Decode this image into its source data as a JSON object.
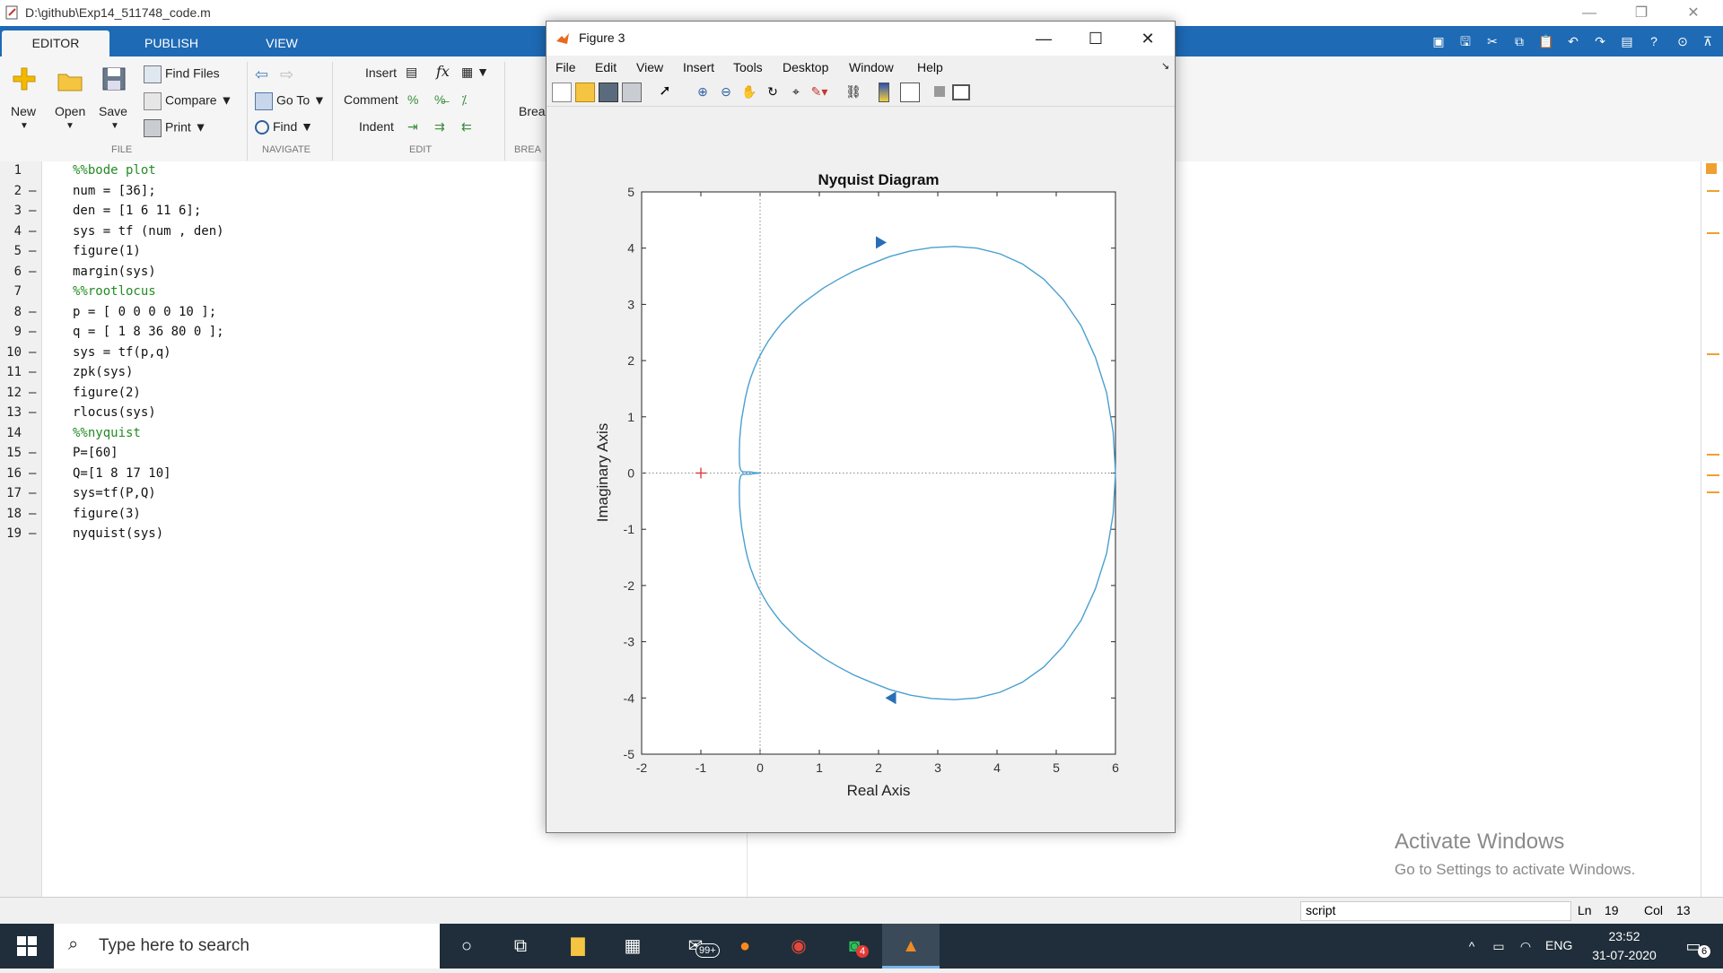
{
  "app": {
    "title": "D:\\github\\Exp14_511748_code.m",
    "window_controls": [
      "minimize",
      "restore",
      "close"
    ]
  },
  "ribbon": {
    "tabs": [
      {
        "label": "EDITOR",
        "active": true
      },
      {
        "label": "PUBLISH",
        "active": false
      },
      {
        "label": "VIEW",
        "active": false
      }
    ],
    "file": {
      "new": "New",
      "open": "Open",
      "save": "Save",
      "find_files": "Find Files",
      "compare": "Compare",
      "print": "Print",
      "group": "FILE"
    },
    "navigate": {
      "go_to": "Go To",
      "find": "Find",
      "group": "NAVIGATE"
    },
    "edit": {
      "insert": "Insert",
      "comment": "Comment",
      "indent": "Indent",
      "fx": "fx",
      "group": "EDIT"
    },
    "breakpoints": {
      "label": "Brea",
      "group": "BREA"
    }
  },
  "editor": {
    "lines": [
      {
        "n": "1",
        "dash": "",
        "text": "%%bode plot",
        "comment": true
      },
      {
        "n": "2",
        "dash": "–",
        "text": "num = [36];",
        "comment": false
      },
      {
        "n": "3",
        "dash": "–",
        "text": "den = [1 6 11 6];",
        "comment": false
      },
      {
        "n": "4",
        "dash": "–",
        "text": "sys = tf (num , den)",
        "comment": false
      },
      {
        "n": "5",
        "dash": "–",
        "text": "figure(1)",
        "comment": false
      },
      {
        "n": "6",
        "dash": "–",
        "text": "margin(sys)",
        "comment": false
      },
      {
        "n": "7",
        "dash": "",
        "text": "%%rootlocus",
        "comment": true
      },
      {
        "n": "8",
        "dash": "–",
        "text": "p = [ 0 0 0 0 10 ];",
        "comment": false
      },
      {
        "n": "9",
        "dash": "–",
        "text": "q = [ 1 8 36 80 0 ];",
        "comment": false
      },
      {
        "n": "10",
        "dash": "–",
        "text": "sys = tf(p,q)",
        "comment": false
      },
      {
        "n": "11",
        "dash": "–",
        "text": "zpk(sys)",
        "comment": false
      },
      {
        "n": "12",
        "dash": "–",
        "text": "figure(2)",
        "comment": false
      },
      {
        "n": "13",
        "dash": "–",
        "text": "rlocus(sys)",
        "comment": false
      },
      {
        "n": "14",
        "dash": "",
        "text": "%%nyquist",
        "comment": true
      },
      {
        "n": "15",
        "dash": "–",
        "text": "P=[60]",
        "comment": false
      },
      {
        "n": "16",
        "dash": "–",
        "text": "Q=[1 8 17 10]",
        "comment": false
      },
      {
        "n": "17",
        "dash": "–",
        "text": "sys=tf(P,Q)",
        "comment": false
      },
      {
        "n": "18",
        "dash": "–",
        "text": "figure(3)",
        "comment": false
      },
      {
        "n": "19",
        "dash": "–",
        "text": "nyquist(sys)",
        "comment": false
      }
    ]
  },
  "status": {
    "mode": "script",
    "ln_label": "Ln",
    "ln_value": "19",
    "col_label": "Col",
    "col_value": "13"
  },
  "watermark": {
    "line1": "Activate Windows",
    "line2": "Go to Settings to activate Windows."
  },
  "taskbar": {
    "search_placeholder": "Type here to search",
    "mail_badge": "99+",
    "whatsapp_badge": "4",
    "lang": "ENG",
    "time": "23:52",
    "date": "31-07-2020",
    "notification_count": "6"
  },
  "figure": {
    "title": "Figure 3",
    "menu": [
      "File",
      "Edit",
      "View",
      "Insert",
      "Tools",
      "Desktop",
      "Window",
      "Help"
    ],
    "toolbar_icons": [
      "new-figure-icon",
      "open-icon",
      "save-icon",
      "print-icon",
      "pointer-icon",
      "zoom-in-icon",
      "zoom-out-icon",
      "pan-icon",
      "rotate-icon",
      "data-cursor-icon",
      "brush-icon",
      "link-icon",
      "colorbar-icon",
      "legend-icon",
      "hide-plot-tools-icon",
      "show-plot-tools-icon"
    ]
  },
  "chart_data": {
    "type": "line",
    "title": "Nyquist Diagram",
    "xlabel": "Real Axis",
    "ylabel": "Imaginary Axis",
    "xlim": [
      -2,
      6
    ],
    "ylim": [
      -5,
      5
    ],
    "xticks": [
      "-2",
      "-1",
      "0",
      "1",
      "2",
      "3",
      "4",
      "5",
      "6"
    ],
    "yticks": [
      "5",
      "4",
      "3",
      "2",
      "1",
      "0",
      "-1",
      "-2",
      "-3",
      "-4",
      "-5"
    ],
    "critical_point": [
      -1,
      0
    ],
    "line_color": "#4a9fd0",
    "series": [
      {
        "x": [
          6.0,
          5.96,
          5.85,
          5.66,
          5.42,
          5.12,
          4.79,
          4.43,
          4.05,
          3.66,
          3.28,
          2.9,
          2.54,
          2.19,
          1.87,
          1.58,
          1.31,
          1.07,
          0.86,
          0.67,
          0.51,
          0.37,
          0.25,
          0.14,
          0.05,
          -0.03,
          -0.1,
          -0.16,
          -0.21,
          -0.25,
          -0.28,
          -0.31,
          -0.33,
          -0.345,
          -0.35,
          -0.35,
          -0.345,
          -0.33,
          -0.31,
          -0.28,
          -0.25,
          -0.21,
          -0.16,
          -0.1,
          -0.05,
          0
        ],
        "y": [
          0.0,
          -0.73,
          -1.43,
          -2.06,
          -2.62,
          -3.08,
          -3.45,
          -3.72,
          -3.9,
          -4.0,
          -4.03,
          -4.01,
          -3.95,
          -3.85,
          -3.72,
          -3.59,
          -3.44,
          -3.29,
          -3.13,
          -2.98,
          -2.82,
          -2.67,
          -2.51,
          -2.35,
          -2.19,
          -2.03,
          -1.86,
          -1.69,
          -1.51,
          -1.33,
          -1.15,
          -0.97,
          -0.78,
          -0.59,
          -0.41,
          -0.25,
          -0.13,
          -0.06,
          -0.03,
          -0.02,
          -0.02,
          -0.02,
          -0.02,
          -0.01,
          -0.005,
          0
        ]
      }
    ]
  }
}
